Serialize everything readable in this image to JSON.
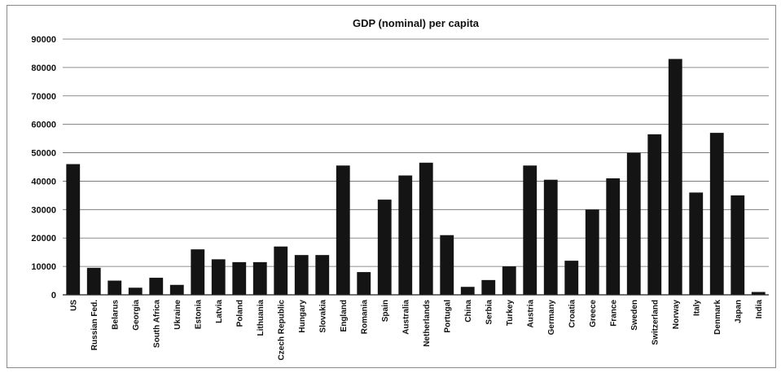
{
  "chart_data": {
    "type": "bar",
    "title": "GDP (nominal) per capita",
    "xlabel": "",
    "ylabel": "",
    "ylim": [
      0,
      90000
    ],
    "yticks": [
      "0",
      "10000",
      "20000",
      "30000",
      "40000",
      "50000",
      "60000",
      "70000",
      "80000",
      "90000"
    ],
    "grid": true,
    "legend": "none",
    "bar_color": "#141414",
    "categories": [
      "US",
      "Russian Fed.",
      "Belarus",
      "Georgia",
      "South Africa",
      "Ukraine",
      "Estonia",
      "Latvia",
      "Poland",
      "Lithuania",
      "Czech Republic",
      "Hungary",
      "Slovakia",
      "England",
      "Romania",
      "Spain",
      "Australia",
      "Netherlands",
      "Portugal",
      "China",
      "Serbia",
      "Turkey",
      "Austria",
      "Germany",
      "Croatia",
      "Greece",
      "France",
      "Sweden",
      "Switzerland",
      "Norway",
      "Italy",
      "Denmark",
      "Japan",
      "India"
    ],
    "values": [
      46000,
      9500,
      5000,
      2500,
      6000,
      3500,
      16000,
      12500,
      11500,
      11500,
      17000,
      14000,
      14000,
      45500,
      8000,
      33500,
      42000,
      46500,
      21000,
      2800,
      5200,
      10000,
      45500,
      40500,
      12000,
      30000,
      41000,
      50000,
      56500,
      83000,
      36000,
      57000,
      35000,
      1000
    ]
  }
}
